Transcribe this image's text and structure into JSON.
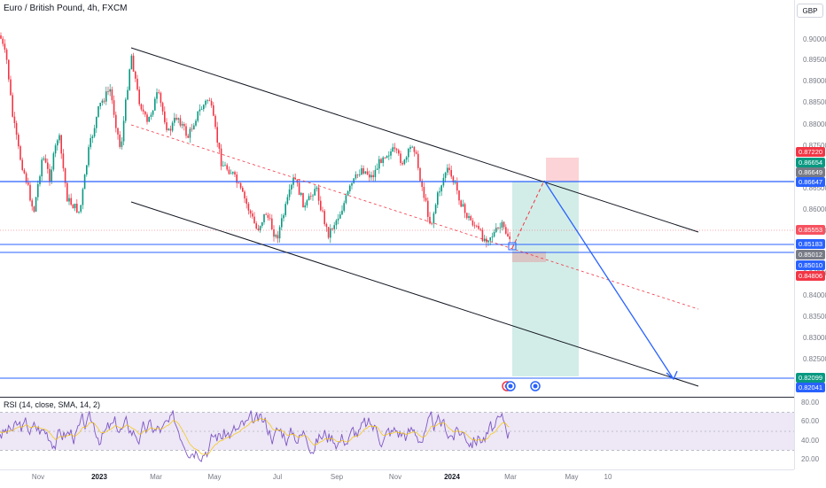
{
  "chart": {
    "title": "Euro / British Pound, 4h, FXCM",
    "currency": "GBP",
    "price_ticks": [
      "0.90000",
      "0.89500",
      "0.89000",
      "0.88500",
      "0.88000",
      "0.87500",
      "0.86500",
      "0.86000",
      "0.85500",
      "0.84500",
      "0.84000",
      "0.83500",
      "0.83000",
      "0.82500"
    ],
    "price_tags": [
      {
        "value": "0.87220",
        "color": "#f23645"
      },
      {
        "value": "0.86654",
        "color": "#089981"
      },
      {
        "value": "0.86649",
        "color": "#787b86"
      },
      {
        "value": "0.86647",
        "color": "#2962ff"
      },
      {
        "value": "0.85553",
        "color": "#f7525f"
      },
      {
        "value": "0.85183",
        "color": "#2962ff"
      },
      {
        "value": "0.85012",
        "color": "#787b86"
      },
      {
        "value": "0.85010",
        "color": "#2962ff"
      },
      {
        "value": "0.84806",
        "color": "#f23645"
      },
      {
        "value": "0.82099",
        "color": "#089981"
      },
      {
        "value": "0.82041",
        "color": "#2962ff"
      }
    ],
    "time_ticks": [
      {
        "label": "Nov",
        "bold": false
      },
      {
        "label": "2023",
        "bold": true
      },
      {
        "label": "Mar",
        "bold": false
      },
      {
        "label": "May",
        "bold": false
      },
      {
        "label": "Jul",
        "bold": false
      },
      {
        "label": "Sep",
        "bold": false
      },
      {
        "label": "Nov",
        "bold": false
      },
      {
        "label": "2024",
        "bold": true
      },
      {
        "label": "Mar",
        "bold": false
      },
      {
        "label": "May",
        "bold": false
      },
      {
        "label": "10",
        "bold": false
      }
    ],
    "up_color": "#089981",
    "down_color": "#f23645",
    "drawing_color": "#2962ff"
  },
  "rsi": {
    "title": "RSI (14, close, SMA, 14, 2)",
    "ticks": [
      "80.00",
      "60.00",
      "40.00",
      "20.00"
    ],
    "line_color": "#7e57c2",
    "band_color": "#ede7f6"
  }
}
